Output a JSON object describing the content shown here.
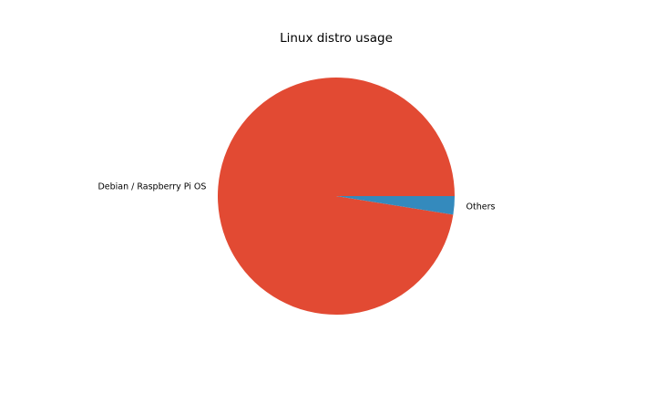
{
  "chart_data": {
    "type": "pie",
    "title": "Linux distro usage",
    "categories": [
      "Debian / Raspberry Pi OS",
      "Others"
    ],
    "values": [
      97.5,
      2.5
    ],
    "colors": [
      "#E24A33",
      "#348ABD"
    ],
    "start_angle_deg": 0,
    "direction": "counterclockwise",
    "legend": "none",
    "grid": false
  }
}
